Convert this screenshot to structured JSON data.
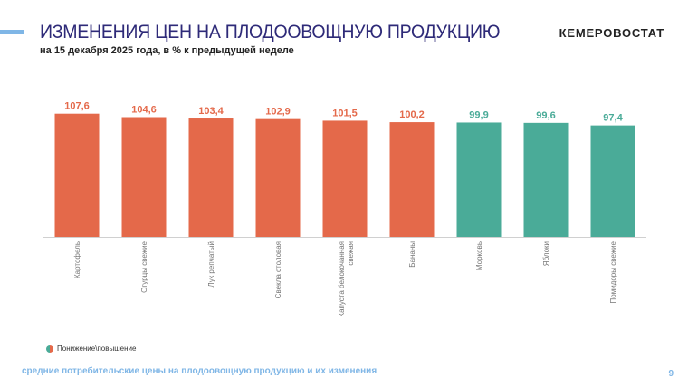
{
  "header": {
    "title": "ИЗМЕНЕНИЯ ЦЕН НА ПЛОДООВОЩНУЮ ПРОДУКЦИЮ",
    "subtitle": "на 15 декабря 2025 года, в % к предыдущей неделе",
    "brand": "КЕМЕРОВОСТАТ"
  },
  "chart_data": {
    "type": "bar",
    "categories": [
      "Картофель",
      "Огурцы свежие",
      "Лук репчатый",
      "Свекла столовая",
      "Капуста белокочанная свежая",
      "Бананы",
      "Морковь",
      "Яблоки",
      "Помидоры свежие"
    ],
    "values": [
      107.6,
      104.6,
      103.4,
      102.9,
      101.5,
      100.2,
      99.9,
      99.6,
      97.4
    ],
    "labels": [
      "107,6",
      "104,6",
      "103,4",
      "102,9",
      "101,5",
      "100,2",
      "99,9",
      "99,6",
      "97,4"
    ],
    "legend": "Понижение\\повышение",
    "legend_position": "bottom-left",
    "ylim": [
      0,
      120
    ],
    "grid": false,
    "colors": {
      "increase": "#e4694a",
      "decrease": "#4aab98"
    }
  },
  "footer": {
    "text": "средние потребительские цены на плодоовощную продукцию и их изменения",
    "page": "9"
  }
}
